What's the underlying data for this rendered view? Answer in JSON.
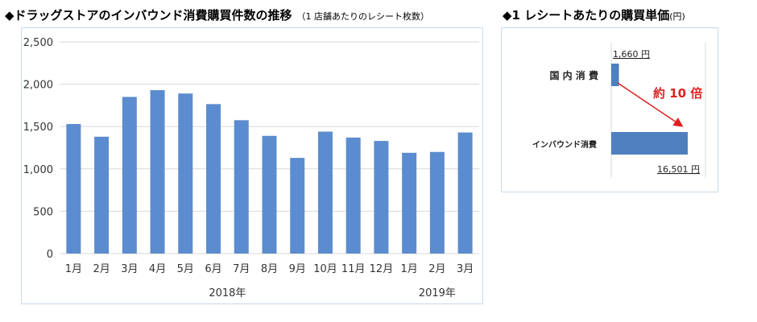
{
  "left_title": "◆ドラッグストアのインバウンド消費購買件数の推移",
  "left_subtitle": "（1 店舗あたりのレシート枚数）",
  "right_title": "◆1 レシートあたりの購買単価",
  "right_unit": "(円)",
  "chart_data": [
    {
      "type": "bar",
      "categories": [
        "1月",
        "2月",
        "3月",
        "4月",
        "5月",
        "6月",
        "7月",
        "8月",
        "9月",
        "10月",
        "11月",
        "12月",
        "1月",
        "2月",
        "3月"
      ],
      "values": [
        1530,
        1380,
        1850,
        1930,
        1890,
        1765,
        1575,
        1390,
        1130,
        1440,
        1370,
        1330,
        1190,
        1200,
        1430
      ],
      "year_labels": [
        "2018年",
        "2019年"
      ],
      "ylim": [
        0,
        2500
      ],
      "yticks": [
        "0",
        "500",
        "1,000",
        "1,500",
        "2,000",
        "2,500"
      ],
      "grid": true,
      "color": "#5b8ccf"
    },
    {
      "type": "bar",
      "orientation": "horizontal",
      "categories": [
        "国 内 消 費",
        "インバウンド消費"
      ],
      "values": [
        1660,
        16501
      ],
      "data_labels": [
        "1,660 円",
        "16,501 円"
      ],
      "annotation": "約 10 倍",
      "color": "#4f7fbf",
      "annotation_color": "#e02020"
    }
  ]
}
